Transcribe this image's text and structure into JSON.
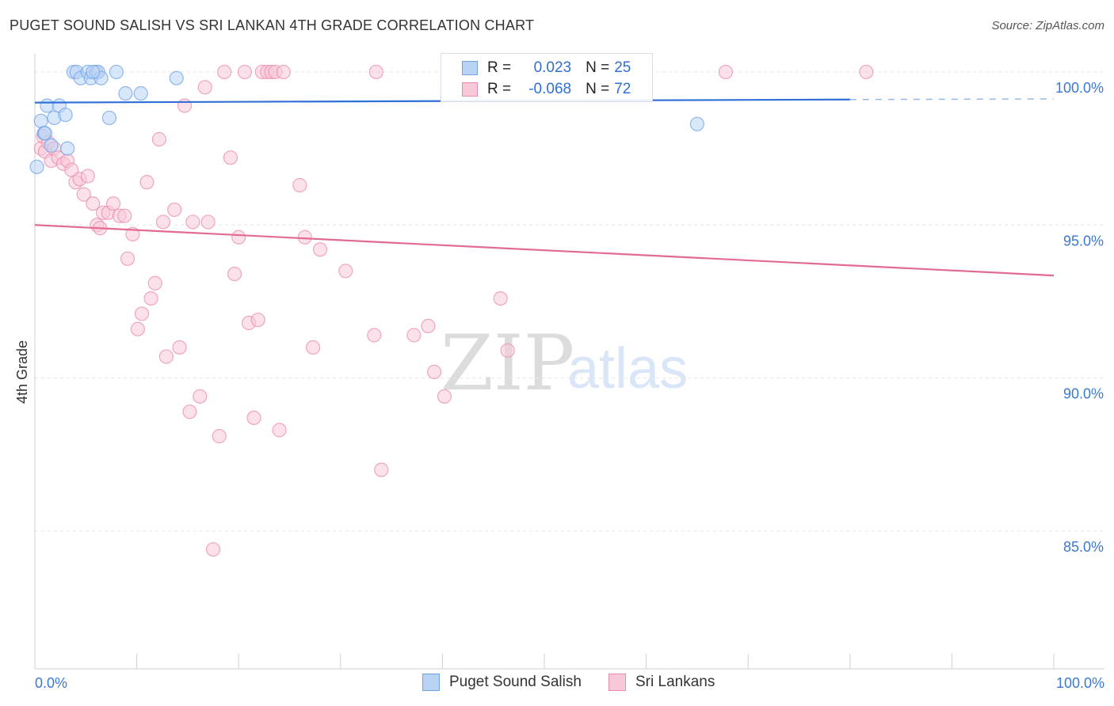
{
  "title": "PUGET SOUND SALISH VS SRI LANKAN 4TH GRADE CORRELATION CHART",
  "source": "Source: ZipAtlas.com",
  "watermark": {
    "zip": "ZIP",
    "atlas": "atlas"
  },
  "colors": {
    "blue": "#6fa3e6",
    "blue_fill": "#b9d3f5",
    "blue_line": "#2f6fd6",
    "pink": "#e98cab",
    "pink_fill": "#f7c8d7",
    "pink_line": "#e26a96",
    "tick_label": "#3a78d4",
    "grid": "#e6e6e6"
  },
  "legend": {
    "rows": [
      {
        "r_label": "R =",
        "r_value": "0.023",
        "n_label": "N =",
        "n_value": "25"
      },
      {
        "r_label": "R =",
        "r_value": "-0.068",
        "n_label": "N =",
        "n_value": "72"
      }
    ]
  },
  "chart_data": {
    "type": "scatter",
    "title": "PUGET SOUND SALISH VS SRI LANKAN 4TH GRADE CORRELATION CHART",
    "xlabel": "",
    "ylabel": "4th Grade",
    "xlim": [
      0,
      100
    ],
    "ylim": [
      80.5,
      100.8
    ],
    "x_tick_labels": [
      "0.0%",
      "100.0%"
    ],
    "y_ticks": [
      85,
      90,
      95,
      100
    ],
    "y_tick_labels": [
      "85.0%",
      "90.0%",
      "95.0%",
      "100.0%"
    ],
    "series": [
      {
        "name": "Puget Sound Salish",
        "r": 0.023,
        "n": 25,
        "trend": {
          "x": [
            0,
            80
          ],
          "y": [
            99.0,
            99.1
          ],
          "dashed_to": [
            100,
            99.12
          ]
        },
        "points": [
          [
            0.2,
            96.9
          ],
          [
            0.6,
            98.4
          ],
          [
            0.9,
            98.0
          ],
          [
            1.2,
            98.9
          ],
          [
            1.6,
            97.6
          ],
          [
            1.9,
            98.5
          ],
          [
            2.4,
            98.9
          ],
          [
            3.0,
            98.6
          ],
          [
            3.2,
            97.5
          ],
          [
            3.8,
            100.0
          ],
          [
            4.1,
            100.0
          ],
          [
            4.5,
            99.8
          ],
          [
            5.2,
            100.0
          ],
          [
            5.5,
            99.8
          ],
          [
            6.0,
            100.0
          ],
          [
            6.2,
            100.0
          ],
          [
            6.5,
            99.8
          ],
          [
            7.3,
            98.5
          ],
          [
            8.0,
            100.0
          ],
          [
            8.9,
            99.3
          ],
          [
            10.4,
            99.3
          ],
          [
            13.9,
            99.8
          ],
          [
            65.0,
            98.3
          ],
          [
            1.0,
            98.0
          ],
          [
            5.7,
            100.0
          ]
        ]
      },
      {
        "name": "Sri Lankans",
        "r": -0.068,
        "n": 72,
        "trend": {
          "x": [
            0,
            100
          ],
          "y": [
            95.0,
            93.35
          ]
        },
        "points": [
          [
            0.6,
            97.5
          ],
          [
            0.8,
            97.9
          ],
          [
            1.0,
            97.4
          ],
          [
            1.3,
            97.7
          ],
          [
            1.6,
            97.1
          ],
          [
            1.9,
            97.5
          ],
          [
            2.3,
            97.2
          ],
          [
            2.8,
            97.0
          ],
          [
            3.2,
            97.1
          ],
          [
            3.6,
            96.8
          ],
          [
            4.0,
            96.4
          ],
          [
            4.4,
            96.5
          ],
          [
            4.8,
            96.0
          ],
          [
            5.2,
            96.6
          ],
          [
            5.7,
            95.7
          ],
          [
            6.1,
            95.0
          ],
          [
            6.4,
            94.9
          ],
          [
            6.7,
            95.4
          ],
          [
            7.2,
            95.4
          ],
          [
            7.7,
            95.7
          ],
          [
            8.3,
            95.3
          ],
          [
            8.8,
            95.3
          ],
          [
            9.1,
            93.9
          ],
          [
            9.6,
            94.7
          ],
          [
            10.1,
            91.6
          ],
          [
            10.5,
            92.1
          ],
          [
            11.0,
            96.4
          ],
          [
            11.4,
            92.6
          ],
          [
            11.8,
            93.1
          ],
          [
            12.2,
            97.8
          ],
          [
            12.6,
            95.1
          ],
          [
            12.9,
            90.7
          ],
          [
            13.7,
            95.5
          ],
          [
            14.2,
            91.0
          ],
          [
            14.7,
            98.9
          ],
          [
            15.2,
            88.9
          ],
          [
            15.5,
            95.1
          ],
          [
            16.2,
            89.4
          ],
          [
            16.7,
            99.5
          ],
          [
            17.0,
            95.1
          ],
          [
            17.5,
            84.4
          ],
          [
            18.1,
            88.1
          ],
          [
            18.6,
            100.0
          ],
          [
            19.2,
            97.2
          ],
          [
            19.6,
            93.4
          ],
          [
            20.0,
            94.6
          ],
          [
            20.6,
            100.0
          ],
          [
            21.0,
            91.8
          ],
          [
            21.5,
            88.7
          ],
          [
            21.9,
            91.9
          ],
          [
            22.3,
            100.0
          ],
          [
            22.8,
            100.0
          ],
          [
            23.2,
            100.0
          ],
          [
            23.6,
            100.0
          ],
          [
            24.0,
            88.3
          ],
          [
            24.4,
            100.0
          ],
          [
            26.0,
            96.3
          ],
          [
            26.5,
            94.6
          ],
          [
            27.3,
            91.0
          ],
          [
            28.0,
            94.2
          ],
          [
            30.5,
            93.5
          ],
          [
            33.3,
            91.4
          ],
          [
            33.5,
            100.0
          ],
          [
            34.0,
            87.0
          ],
          [
            37.2,
            91.4
          ],
          [
            38.6,
            91.7
          ],
          [
            39.2,
            90.2
          ],
          [
            40.2,
            89.4
          ],
          [
            45.7,
            92.6
          ],
          [
            46.4,
            90.9
          ],
          [
            67.8,
            100.0
          ],
          [
            81.6,
            100.0
          ]
        ]
      }
    ]
  }
}
